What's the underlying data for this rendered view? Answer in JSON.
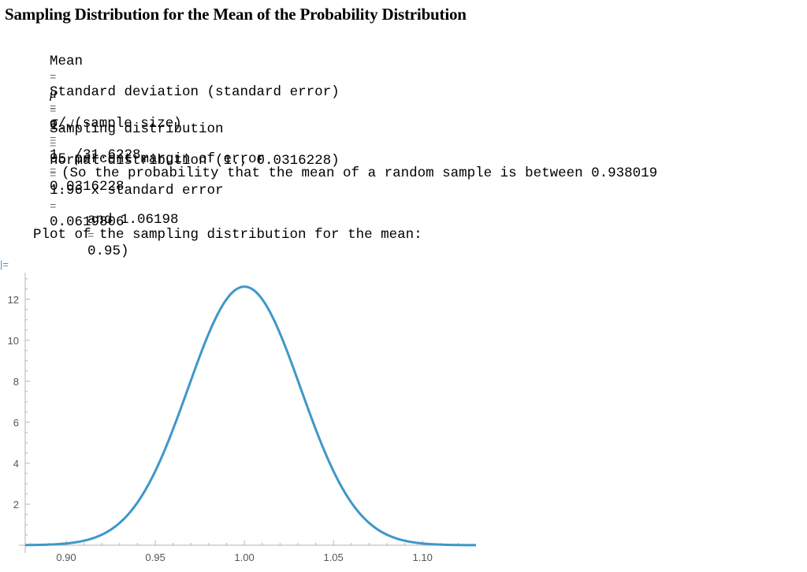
{
  "title": "Sampling Distribution for the Mean of the Probability Distribution",
  "lines": {
    "mean_label": "Mean",
    "mean_mu": "μ",
    "mean_value": "1.",
    "sd_label": "Standard deviation (standard error)",
    "sd_formula_a": "σ/",
    "sd_formula_sqrt": "√",
    "sd_formula_b": "(sample size)",
    "sd_formula_c": "1. /31.6228",
    "sd_value": "0.0316228",
    "dist_label": "Sampling distribution",
    "dist_value": "normal distribution (1., 0.0316228)",
    "moe_label": "95 percent margin of error",
    "moe_formula": "1.96 x standard error",
    "moe_value": "0.0619806",
    "prob_line1": "(So the probability that the mean of a random sample is between 0.938019",
    "prob_line2a": "and 1.06198",
    "prob_line2b": "0.95)",
    "plot_caption": "Plot of the sampling distribution for the mean:",
    "equals": "="
  },
  "cell_marker": "|=",
  "chart_data": {
    "type": "line",
    "title": "",
    "xlabel": "",
    "ylabel": "",
    "distribution": "normal",
    "mean": 1.0,
    "sd": 0.0316228,
    "xlim": [
      0.877,
      1.13
    ],
    "ylim": [
      0,
      13.3
    ],
    "x_ticks": [
      0.9,
      0.95,
      1.0,
      1.05,
      1.1
    ],
    "x_tick_labels": [
      "0.90",
      "0.95",
      "1.00",
      "1.05",
      "1.10"
    ],
    "y_ticks": [
      2,
      4,
      6,
      8,
      10,
      12
    ],
    "y_tick_labels": [
      "2",
      "4",
      "6",
      "8",
      "10",
      "12"
    ],
    "series": [
      {
        "color": "#3e97c9",
        "x": [
          0.877,
          0.89,
          0.9,
          0.91,
          0.92,
          0.93,
          0.94,
          0.95,
          0.96,
          0.97,
          0.98,
          0.99,
          1.0,
          1.01,
          1.02,
          1.03,
          1.04,
          1.05,
          1.06,
          1.07,
          1.08,
          1.09,
          1.1,
          1.11,
          1.13
        ],
        "y": [
          0.0,
          0.03,
          0.09,
          0.22,
          0.52,
          1.12,
          2.07,
          3.47,
          5.1,
          6.88,
          8.69,
          11.33,
          12.62,
          11.33,
          8.69,
          6.88,
          5.1,
          3.47,
          2.07,
          1.12,
          0.52,
          0.22,
          0.09,
          0.03,
          0.0
        ]
      }
    ],
    "grid": false,
    "legend": "none"
  }
}
